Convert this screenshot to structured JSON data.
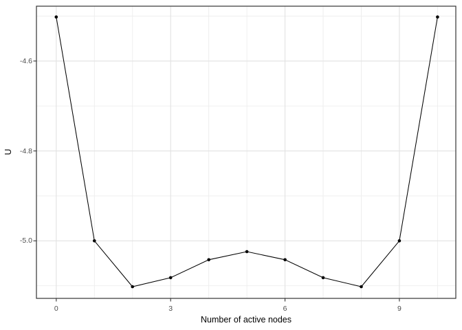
{
  "chart_data": {
    "type": "line",
    "title": "",
    "xlabel": "Number of active nodes",
    "ylabel": "U",
    "x": [
      0,
      1,
      2,
      3,
      4,
      5,
      6,
      7,
      8,
      9,
      10
    ],
    "series": [
      {
        "name": "U",
        "values": [
          -4.502,
          -5.0,
          -5.102,
          -5.082,
          -5.042,
          -5.024,
          -5.042,
          -5.082,
          -5.102,
          -5.0,
          -4.502
        ]
      }
    ],
    "xlim": [
      -0.52,
      10.48
    ],
    "ylim": [
      -5.128,
      -4.478
    ],
    "x_ticks": {
      "values": [
        0,
        3,
        6,
        9
      ],
      "labels": [
        "0",
        "3",
        "6",
        "9"
      ]
    },
    "x_minor_gridlines": [
      1,
      2,
      4,
      5,
      7,
      8,
      10
    ],
    "y_ticks": {
      "values": [
        -4.6,
        -4.8,
        -5.0
      ],
      "labels": [
        "-4.6",
        "-4.8",
        "-5.0"
      ]
    },
    "y_minor_gridlines": [
      -4.5,
      -4.7,
      -4.9,
      -5.1
    ],
    "grid": "major+minor",
    "legend_position": "none",
    "marker": "filled-circle",
    "line_style": "solid",
    "colors": {
      "line": "#000000",
      "point": "#000000",
      "grid_major": "#e2e2e2",
      "grid_minor": "#ededed",
      "panel_border": "#333333",
      "tick_mark": "#333333",
      "tick_label": "#4d4d4d",
      "axis_title": "#000000",
      "panel_background": "#ffffff"
    }
  }
}
